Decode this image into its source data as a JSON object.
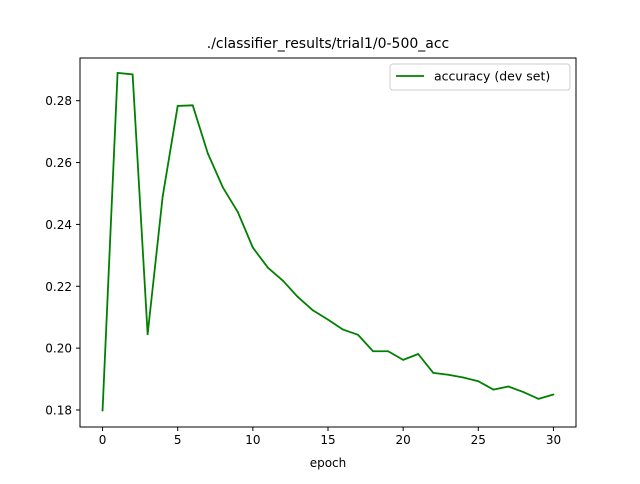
{
  "chart_data": {
    "type": "line",
    "title": "./classifier_results/trial1/0-500_acc",
    "xlabel": "epoch",
    "ylabel": "",
    "xlim": [
      -1.5,
      31.5
    ],
    "ylim": [
      0.1745,
      0.2938
    ],
    "x_ticks": [
      0,
      5,
      10,
      15,
      20,
      25,
      30
    ],
    "y_ticks": [
      0.18,
      0.2,
      0.22,
      0.24,
      0.26,
      0.28
    ],
    "y_tick_labels": [
      "0.18",
      "0.20",
      "0.22",
      "0.24",
      "0.26",
      "0.28"
    ],
    "grid": false,
    "legend_position": "top-right",
    "series": [
      {
        "name": "accuracy (dev set)",
        "color": "#008000",
        "x": [
          0,
          1,
          2,
          3,
          4,
          5,
          6,
          7,
          8,
          9,
          10,
          11,
          12,
          13,
          14,
          15,
          16,
          17,
          18,
          19,
          20,
          21,
          22,
          23,
          24,
          25,
          26,
          27,
          28,
          29,
          30
        ],
        "y": [
          0.1798,
          0.289,
          0.2885,
          0.2045,
          0.249,
          0.2783,
          0.2785,
          0.263,
          0.252,
          0.244,
          0.2325,
          0.226,
          0.2218,
          0.2165,
          0.2122,
          0.2092,
          0.206,
          0.2043,
          0.199,
          0.199,
          0.1962,
          0.1981,
          0.192,
          0.1914,
          0.1905,
          0.1893,
          0.1866,
          0.1876,
          0.1858,
          0.1836,
          0.185
        ]
      }
    ]
  }
}
